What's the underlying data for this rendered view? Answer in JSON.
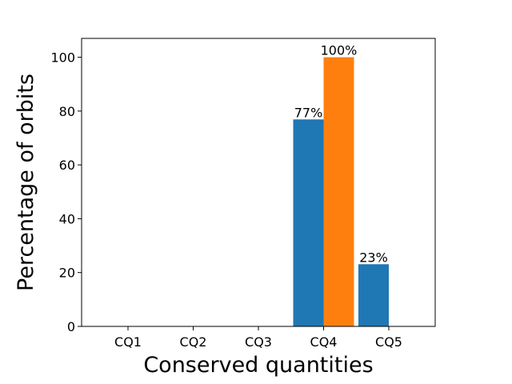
{
  "chart_data": {
    "type": "bar",
    "categories": [
      "CQ1",
      "CQ2",
      "CQ3",
      "CQ4",
      "CQ5"
    ],
    "series": [
      {
        "values": [
          0,
          0,
          0,
          76.9,
          23.1
        ],
        "labels": [
          "",
          "",
          "",
          "77%",
          "23%"
        ],
        "color": "#1f77b4"
      },
      {
        "values": [
          0,
          0,
          0,
          100,
          0
        ],
        "labels": [
          "",
          "",
          "",
          "100%",
          ""
        ],
        "color": "#ff7f0e"
      }
    ],
    "xlabel": "Conserved quantities",
    "ylabel": "Percentage of orbits",
    "ylim": [
      0,
      107
    ],
    "yticks": [
      0,
      20,
      40,
      60,
      80,
      100
    ],
    "grid": false,
    "legend": "none"
  }
}
